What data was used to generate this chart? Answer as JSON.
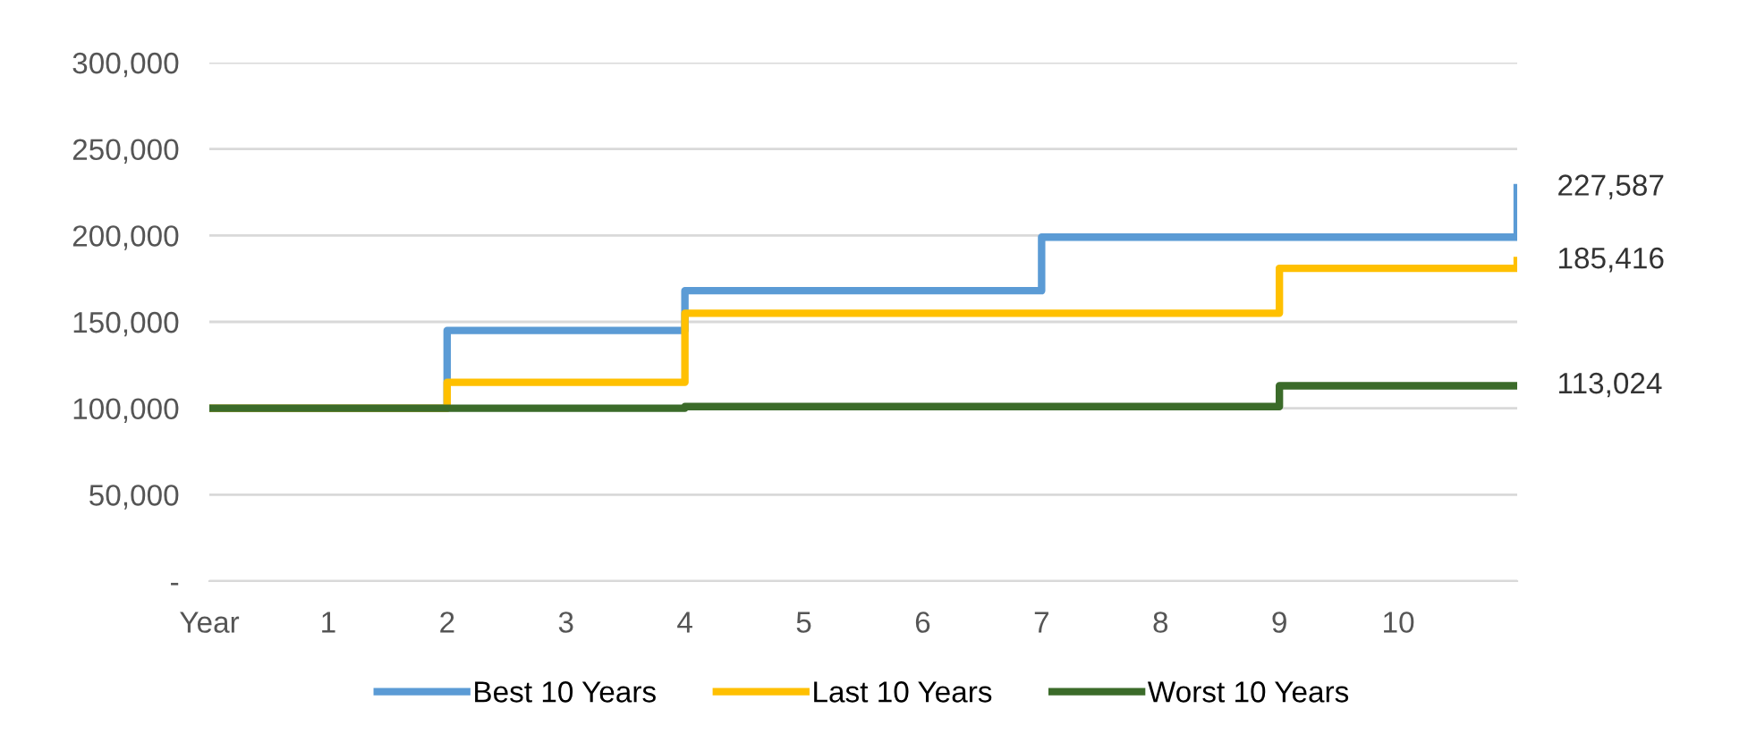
{
  "chart_data": {
    "type": "step",
    "categories": [
      "Year",
      "1",
      "2",
      "3",
      "4",
      "5",
      "6",
      "7",
      "8",
      "9",
      "10",
      null
    ],
    "ylim": [
      0,
      300000
    ],
    "yticks": [
      {
        "value": 0,
        "label": "-"
      },
      {
        "value": 50000,
        "label": "50,000"
      },
      {
        "value": 100000,
        "label": "100,000"
      },
      {
        "value": 150000,
        "label": "150,000"
      },
      {
        "value": 200000,
        "label": "200,000"
      },
      {
        "value": 250000,
        "label": "250,000"
      },
      {
        "value": 300000,
        "label": "300,000"
      }
    ],
    "grid": "y",
    "legend": "bottom",
    "series": [
      {
        "name": "Best 10 Years",
        "color": "#5b9bd5",
        "values": [
          100000,
          100000,
          145000,
          145000,
          168000,
          168000,
          168000,
          199000,
          199000,
          199000,
          199000,
          227587
        ],
        "value_labels": [
          null,
          null,
          null,
          null,
          null,
          null,
          null,
          null,
          null,
          null,
          null,
          "227,587"
        ]
      },
      {
        "name": "Last 10 Years",
        "color": "#ffc000",
        "values": [
          100000,
          100000,
          115000,
          115000,
          155000,
          155000,
          155000,
          155000,
          155000,
          181000,
          181000,
          185416
        ],
        "value_labels": [
          null,
          null,
          null,
          null,
          null,
          null,
          null,
          null,
          null,
          null,
          null,
          "185,416"
        ]
      },
      {
        "name": "Worst 10 Years",
        "color": "#3b6b2a",
        "values": [
          100000,
          100000,
          100000,
          100000,
          101000,
          101000,
          101000,
          101000,
          101000,
          113000,
          113000,
          113024
        ],
        "value_labels": [
          null,
          null,
          null,
          null,
          null,
          null,
          null,
          null,
          null,
          null,
          null,
          "113,024"
        ]
      }
    ]
  }
}
